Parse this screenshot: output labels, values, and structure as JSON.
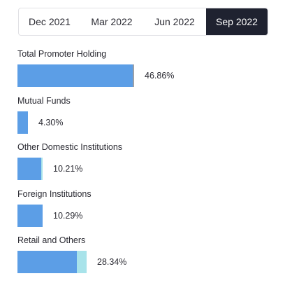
{
  "tabs": [
    "Dec 2021",
    "Mar 2022",
    "Jun 2022",
    "Sep 2022"
  ],
  "active_tab": 3,
  "colors": {
    "bar": "#5c9ee6",
    "increase": "#a8e3ea",
    "decrease": "#9aa0a8",
    "active_tab_bg": "#1f2230"
  },
  "chart_data": {
    "type": "bar",
    "orientation": "horizontal",
    "period": "Sep 2022",
    "categories": [
      "Total Promoter Holding",
      "Mutual Funds",
      "Other Domestic Institutions",
      "Foreign Institutions",
      "Retail and Others"
    ],
    "values": [
      46.86,
      4.3,
      10.21,
      10.29,
      28.34
    ],
    "value_labels": [
      "46.86%",
      "4.30%",
      "10.21%",
      "10.29%",
      "28.34%"
    ],
    "change_segments": [
      {
        "direction": "decrease",
        "amount": 0.3
      },
      {
        "direction": "none",
        "amount": 0
      },
      {
        "direction": "increase",
        "amount": 0.6
      },
      {
        "direction": "none",
        "amount": 0
      },
      {
        "direction": "increase",
        "amount": 4.1
      }
    ],
    "unit": "%"
  }
}
